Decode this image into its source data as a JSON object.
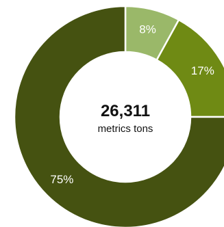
{
  "chart_data": {
    "type": "pie",
    "categories": [
      "",
      "",
      ""
    ],
    "values": [
      8,
      17,
      75
    ],
    "labels": [
      "8%",
      "17%",
      "75%"
    ],
    "colors": [
      "#9ab869",
      "#6f8a14",
      "#455211"
    ],
    "center_value": "26,311",
    "center_unit": "metrics tons"
  }
}
